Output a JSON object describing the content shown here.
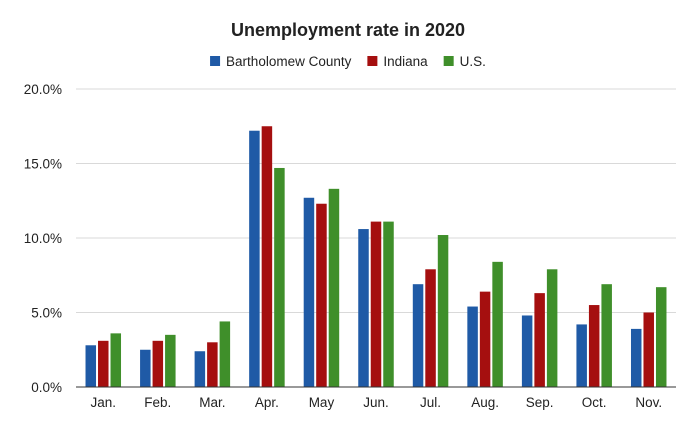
{
  "chart_data": {
    "type": "bar",
    "title": "Unemployment rate in 2020",
    "xlabel": "",
    "ylabel": "",
    "categories": [
      "Jan.",
      "Feb.",
      "Mar.",
      "Apr.",
      "May",
      "Jun.",
      "Jul.",
      "Aug.",
      "Sep.",
      "Oct.",
      "Nov."
    ],
    "series": [
      {
        "name": "Bartholomew County",
        "color": "#1f5aa6",
        "values": [
          2.8,
          2.5,
          2.4,
          17.2,
          12.7,
          10.6,
          6.9,
          5.4,
          4.8,
          4.2,
          3.9
        ]
      },
      {
        "name": "Indiana",
        "color": "#a50f0f",
        "values": [
          3.1,
          3.1,
          3.0,
          17.5,
          12.3,
          11.1,
          7.9,
          6.4,
          6.3,
          5.5,
          5.0
        ]
      },
      {
        "name": "U.S.",
        "color": "#3f8f2a",
        "values": [
          3.6,
          3.5,
          4.4,
          14.7,
          13.3,
          11.1,
          10.2,
          8.4,
          7.9,
          6.9,
          6.7
        ]
      }
    ],
    "ylim": [
      0,
      20
    ],
    "yticks": [
      "0.0%",
      "5.0%",
      "10.0%",
      "15.0%",
      "20.0%"
    ],
    "ytick_values": [
      0,
      5,
      10,
      15,
      20
    ],
    "grid": true,
    "legend_position": "top-center"
  }
}
